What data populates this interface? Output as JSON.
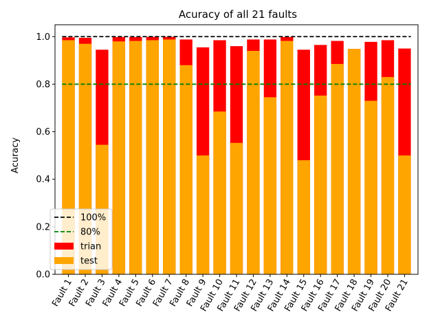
{
  "chart_data": {
    "type": "bar",
    "title": "Acuracy of all 21 faults",
    "xlabel": "",
    "ylabel": "Acuracy",
    "ylim": [
      0,
      1.05
    ],
    "yticks": [
      "0.0",
      "0.2",
      "0.4",
      "0.6",
      "0.8",
      "1.0"
    ],
    "categories": [
      "Fault 1",
      "Fault 2",
      "Fault 3",
      "Fault 4",
      "Fault 5",
      "Fault 6",
      "Fault 7",
      "Fault 8",
      "Fault 9",
      "Fault 10",
      "Fault 11",
      "Fault 12",
      "Fault 13",
      "Fault 14",
      "Fault 15",
      "Fault 16",
      "Fault 17",
      "Fault 18",
      "Fault 19",
      "Fault 20",
      "Fault 21"
    ],
    "series": [
      {
        "name": "trian",
        "color": "#ff0000",
        "values": [
          0.997,
          0.995,
          0.945,
          0.998,
          0.998,
          0.999,
          0.999,
          0.988,
          0.955,
          0.985,
          0.96,
          0.988,
          0.988,
          0.998,
          0.945,
          0.965,
          0.982,
          0.948,
          0.978,
          0.985,
          0.95
        ]
      },
      {
        "name": "test",
        "color": "#ffa500",
        "values": [
          0.985,
          0.97,
          0.545,
          0.98,
          0.982,
          0.985,
          0.988,
          0.88,
          0.5,
          0.685,
          0.553,
          0.94,
          0.745,
          0.982,
          0.48,
          0.752,
          0.885,
          0.948,
          0.73,
          0.83,
          0.5
        ]
      }
    ],
    "reference_lines": [
      {
        "name": "100%",
        "value": 1.0,
        "color": "#000000",
        "style": "dashed"
      },
      {
        "name": "80%",
        "value": 0.8,
        "color": "#008000",
        "style": "dashed"
      }
    ],
    "legend_position": "lower-left",
    "grid": false
  }
}
